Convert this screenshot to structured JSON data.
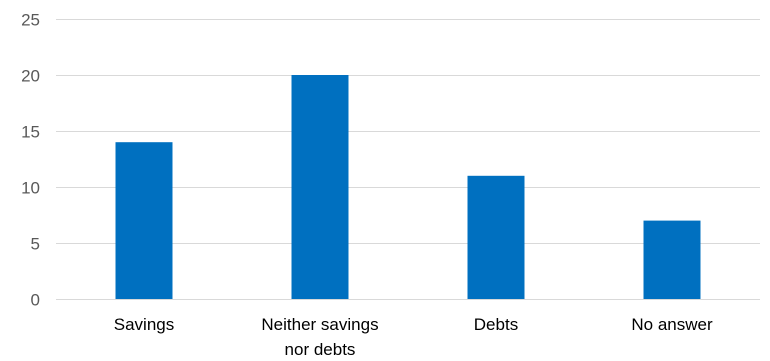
{
  "chart_data": {
    "type": "bar",
    "categories": [
      "Savings",
      "Neither savings nor debts",
      "Debts",
      "No answer"
    ],
    "category_lines": [
      [
        "Savings"
      ],
      [
        "Neither savings",
        "nor debts"
      ],
      [
        "Debts"
      ],
      [
        "No answer"
      ]
    ],
    "values": [
      14,
      20,
      11,
      7
    ],
    "title": "",
    "xlabel": "",
    "ylabel": "",
    "ylim": [
      0,
      25
    ],
    "yticks": [
      0,
      5,
      10,
      15,
      20,
      25
    ],
    "grid": true,
    "legend": "none",
    "bar_color": "#0070C0"
  }
}
